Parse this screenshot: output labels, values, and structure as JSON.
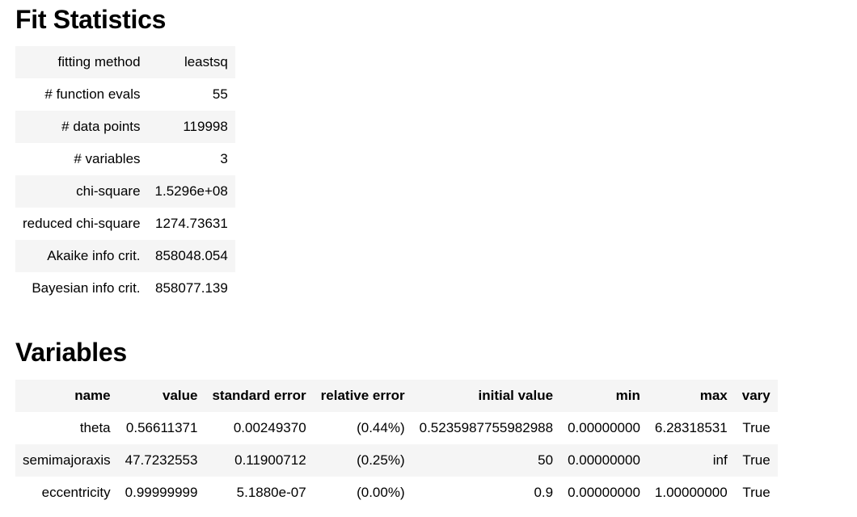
{
  "fit_statistics": {
    "heading": "Fit Statistics",
    "rows": [
      {
        "label": "fitting method",
        "value": "leastsq"
      },
      {
        "label": "# function evals",
        "value": "55"
      },
      {
        "label": "# data points",
        "value": "119998"
      },
      {
        "label": "# variables",
        "value": "3"
      },
      {
        "label": "chi-square",
        "value": "1.5296e+08"
      },
      {
        "label": "reduced chi-square",
        "value": "1274.73631"
      },
      {
        "label": "Akaike info crit.",
        "value": "858048.054"
      },
      {
        "label": "Bayesian info crit.",
        "value": "858077.139"
      }
    ]
  },
  "variables": {
    "heading": "Variables",
    "columns": [
      "name",
      "value",
      "standard error",
      "relative error",
      "initial value",
      "min",
      "max",
      "vary"
    ],
    "rows": [
      [
        "theta",
        "0.56611371",
        "0.00249370",
        "(0.44%)",
        "0.5235987755982988",
        "0.00000000",
        "6.28318531",
        "True"
      ],
      [
        "semimajoraxis",
        "47.7232553",
        "0.11900712",
        "(0.25%)",
        "50",
        "0.00000000",
        "inf",
        "True"
      ],
      [
        "eccentricity",
        "0.99999999",
        "5.1880e-07",
        "(0.00%)",
        "0.9",
        "0.00000000",
        "1.00000000",
        "True"
      ]
    ]
  }
}
